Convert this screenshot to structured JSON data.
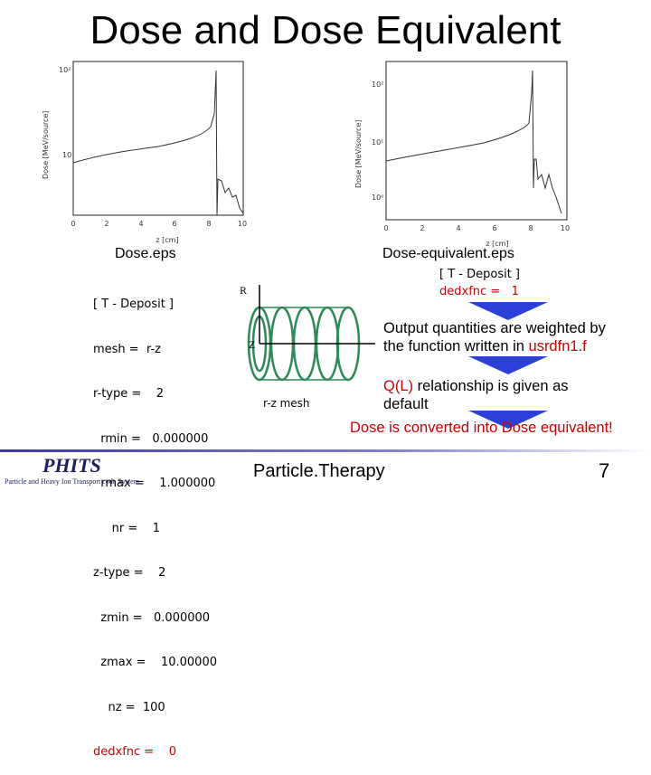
{
  "slide": {
    "title": "Dose and Dose Equivalent",
    "page_number": "7",
    "footer_center": "Particle.Therapy"
  },
  "plots": {
    "left": {
      "caption": "Dose.eps",
      "ylabel": "Dose [MeV/source]",
      "xlabel": "z [cm]",
      "xticks": [
        "0",
        "2",
        "4",
        "6",
        "8",
        "10"
      ],
      "yticks": [
        "10²",
        "10"
      ]
    },
    "right": {
      "caption": "Dose-equivalent.eps",
      "ylabel": "Dose [MeV/source]",
      "xlabel": "z [cm]",
      "xticks": [
        "0",
        "2",
        "4",
        "6",
        "8",
        "10"
      ],
      "yticks": [
        "10²",
        "10¹",
        "10⁰"
      ]
    }
  },
  "input_block": {
    "lines": [
      "[ T - Deposit ]",
      "mesh =  r-z",
      "r-type =    2",
      "  rmin =   0.000000",
      "  rmax =    1.000000",
      "     nr =    1",
      "z-type =    2",
      "  zmin =   0.000000",
      "  zmax =    10.00000",
      "    nz =  100"
    ],
    "dedxfnc_line": "dedxfnc =    0"
  },
  "diagram": {
    "r_label": "R",
    "z_label": "Z",
    "mesh_label": "r-z mesh"
  },
  "right_block": {
    "header": "[ T - Deposit ]",
    "dedxfnc": "dedxfnc =   1",
    "text1_a": "Output quantities are weighted by",
    "text1_b": "the function written in ",
    "text1_red": "usrdfn1.f",
    "text2_red": "Q(L)",
    "text2_a": " relationship is given as",
    "text2_b": "default",
    "text3": "Dose is converted into Dose equivalent!"
  },
  "logo": {
    "name": "PHITS",
    "subtitle": "Particle and Heavy Ion Transport code System"
  },
  "colors": {
    "red": "#cc0000",
    "arrow": "#2a40d8"
  }
}
